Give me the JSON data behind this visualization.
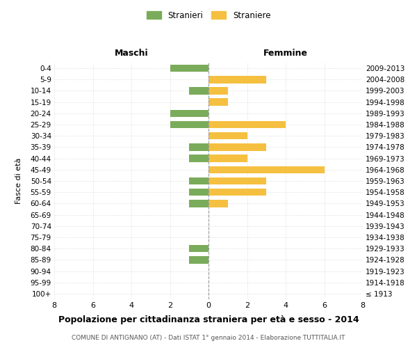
{
  "age_groups": [
    "100+",
    "95-99",
    "90-94",
    "85-89",
    "80-84",
    "75-79",
    "70-74",
    "65-69",
    "60-64",
    "55-59",
    "50-54",
    "45-49",
    "40-44",
    "35-39",
    "30-34",
    "25-29",
    "20-24",
    "15-19",
    "10-14",
    "5-9",
    "0-4"
  ],
  "birth_years": [
    "≤ 1913",
    "1914-1918",
    "1919-1923",
    "1924-1928",
    "1929-1933",
    "1934-1938",
    "1939-1943",
    "1944-1948",
    "1949-1953",
    "1954-1958",
    "1959-1963",
    "1964-1968",
    "1969-1973",
    "1974-1978",
    "1979-1983",
    "1984-1988",
    "1989-1993",
    "1994-1998",
    "1999-2003",
    "2004-2008",
    "2009-2013"
  ],
  "males": [
    0,
    0,
    0,
    1,
    1,
    0,
    0,
    0,
    1,
    1,
    1,
    0,
    1,
    1,
    0,
    2,
    2,
    0,
    1,
    0,
    2
  ],
  "females": [
    0,
    0,
    0,
    0,
    0,
    0,
    0,
    0,
    1,
    3,
    3,
    6,
    2,
    3,
    2,
    4,
    0,
    1,
    1,
    3,
    0
  ],
  "male_color": "#7aab5a",
  "female_color": "#f5c040",
  "title": "Popolazione per cittadinanza straniera per età e sesso - 2014",
  "subtitle": "COMUNE DI ANTIGNANO (AT) - Dati ISTAT 1° gennaio 2014 - Elaborazione TUTTITALIA.IT",
  "ylabel_left": "Fasce di età",
  "xlabel_left": "Maschi",
  "xlabel_right": "Femmine",
  "xlim": 8,
  "legend_labels": [
    "Stranieri",
    "Straniere"
  ],
  "background_color": "#ffffff",
  "grid_color": "#cccccc"
}
